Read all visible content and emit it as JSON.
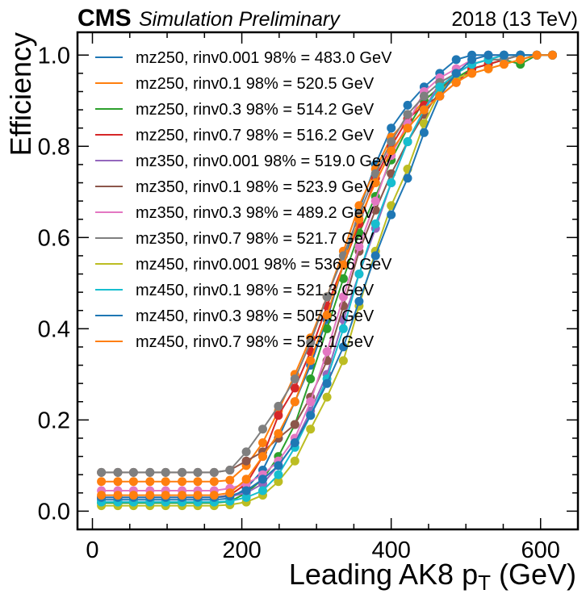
{
  "header": {
    "experiment": "CMS",
    "status": "Simulation Preliminary",
    "energy": "2018 (13 TeV)"
  },
  "chart_data": {
    "type": "line",
    "xlabel_main": "Leading AK8 p",
    "xlabel_sub": "T",
    "xlabel_unit": " (GeV)",
    "ylabel": "Efficiency",
    "xlim": [
      -20,
      650
    ],
    "ylim": [
      -0.04,
      1.05
    ],
    "x_ticks": [
      "0",
      "200",
      "400",
      "600"
    ],
    "y_ticks": [
      "0.0",
      "0.2",
      "0.4",
      "0.6",
      "0.8",
      "1.0"
    ],
    "x": [
      12,
      34,
      55,
      77,
      98,
      120,
      141,
      163,
      184,
      206,
      228,
      249,
      271,
      292,
      314,
      336,
      357,
      379,
      400,
      422,
      444,
      465,
      487,
      508,
      530,
      551,
      573,
      595,
      616
    ],
    "series": [
      {
        "name": "mz250, rinv0.001 98% = 483.0 GeV",
        "color": "#1f77b4",
        "values": [
          0.025,
          0.025,
          0.025,
          0.025,
          0.025,
          0.025,
          0.025,
          0.025,
          0.028,
          0.05,
          0.09,
          0.16,
          0.24,
          0.32,
          0.42,
          0.54,
          0.66,
          0.76,
          0.84,
          0.89,
          0.93,
          0.96,
          0.99,
          1.0,
          1.0,
          1.0,
          1.0,
          1.0,
          1.0
        ]
      },
      {
        "name": "mz250, rinv0.1 98% = 520.5 GeV",
        "color": "#ff7f0e",
        "values": [
          0.065,
          0.065,
          0.065,
          0.065,
          0.065,
          0.065,
          0.065,
          0.065,
          0.068,
          0.1,
          0.15,
          0.22,
          0.3,
          0.38,
          0.47,
          0.57,
          0.67,
          0.75,
          0.82,
          0.86,
          0.9,
          0.93,
          0.95,
          0.97,
          0.98,
          0.99,
          1.0,
          1.0,
          1.0
        ]
      },
      {
        "name": "mz250, rinv0.3 98% = 514.2 GeV",
        "color": "#2ca02c",
        "values": [
          0.018,
          0.018,
          0.018,
          0.018,
          0.018,
          0.018,
          0.018,
          0.018,
          0.021,
          0.04,
          0.07,
          0.12,
          0.19,
          0.29,
          0.4,
          0.51,
          0.61,
          0.69,
          0.77,
          0.84,
          0.9,
          0.93,
          0.95,
          0.97,
          0.98,
          0.99,
          0.98,
          1.0,
          1.0
        ]
      },
      {
        "name": "mz250, rinv0.7 98% = 516.2 GeV",
        "color": "#d62728",
        "values": [
          0.03,
          0.03,
          0.03,
          0.03,
          0.03,
          0.03,
          0.03,
          0.03,
          0.035,
          0.06,
          0.12,
          0.21,
          0.27,
          0.35,
          0.45,
          0.54,
          0.63,
          0.73,
          0.8,
          0.86,
          0.89,
          0.91,
          0.94,
          0.97,
          0.98,
          0.99,
          1.0,
          1.0,
          1.0
        ]
      },
      {
        "name": "mz350, rinv0.001 98% = 519.0 GeV",
        "color": "#9467bd",
        "values": [
          0.03,
          0.03,
          0.03,
          0.03,
          0.03,
          0.03,
          0.03,
          0.03,
          0.032,
          0.04,
          0.06,
          0.1,
          0.15,
          0.22,
          0.3,
          0.42,
          0.52,
          0.62,
          0.72,
          0.81,
          0.88,
          0.94,
          0.96,
          0.98,
          0.99,
          1.0,
          1.0,
          1.0,
          1.0
        ]
      },
      {
        "name": "mz350, rinv0.1 98% = 523.9 GeV",
        "color": "#8c564b",
        "values": [
          0.085,
          0.085,
          0.085,
          0.085,
          0.085,
          0.085,
          0.085,
          0.085,
          0.09,
          0.11,
          0.13,
          0.16,
          0.19,
          0.25,
          0.33,
          0.45,
          0.57,
          0.66,
          0.74,
          0.81,
          0.87,
          0.92,
          0.96,
          0.98,
          0.99,
          0.99,
          1.0,
          1.0,
          1.0
        ]
      },
      {
        "name": "mz350, rinv0.3 98% = 489.2 GeV",
        "color": "#e377c2",
        "values": [
          0.045,
          0.045,
          0.045,
          0.045,
          0.045,
          0.045,
          0.045,
          0.045,
          0.05,
          0.06,
          0.08,
          0.11,
          0.16,
          0.24,
          0.35,
          0.47,
          0.58,
          0.68,
          0.78,
          0.85,
          0.92,
          0.95,
          0.97,
          0.99,
          1.0,
          1.0,
          1.0,
          1.0,
          1.0
        ]
      },
      {
        "name": "mz350, rinv0.7 98% = 521.7 GeV",
        "color": "#7f7f7f",
        "values": [
          0.085,
          0.085,
          0.085,
          0.085,
          0.085,
          0.085,
          0.085,
          0.085,
          0.09,
          0.13,
          0.18,
          0.23,
          0.29,
          0.37,
          0.47,
          0.56,
          0.65,
          0.74,
          0.81,
          0.87,
          0.91,
          0.94,
          0.96,
          0.98,
          0.99,
          0.99,
          1.0,
          1.0,
          1.0
        ]
      },
      {
        "name": "mz450, rinv0.001 98% = 536.6 GeV",
        "color": "#bcbd22",
        "values": [
          0.012,
          0.012,
          0.012,
          0.012,
          0.012,
          0.012,
          0.012,
          0.012,
          0.014,
          0.02,
          0.035,
          0.065,
          0.11,
          0.18,
          0.25,
          0.33,
          0.45,
          0.57,
          0.67,
          0.75,
          0.85,
          0.92,
          0.95,
          0.96,
          0.97,
          0.98,
          0.99,
          1.0,
          1.0
        ]
      },
      {
        "name": "mz450, rinv0.1 98% = 521.3 GeV",
        "color": "#17becf",
        "values": [
          0.02,
          0.02,
          0.02,
          0.02,
          0.02,
          0.02,
          0.02,
          0.02,
          0.022,
          0.03,
          0.045,
          0.08,
          0.14,
          0.21,
          0.29,
          0.4,
          0.52,
          0.63,
          0.72,
          0.81,
          0.88,
          0.93,
          0.96,
          0.98,
          0.99,
          1.0,
          1.0,
          1.0,
          1.0
        ]
      },
      {
        "name": "mz450, rinv0.3 98% = 505.3 GeV",
        "color": "#1f77b4",
        "values": [
          0.03,
          0.03,
          0.03,
          0.03,
          0.03,
          0.03,
          0.03,
          0.03,
          0.033,
          0.045,
          0.07,
          0.1,
          0.15,
          0.21,
          0.28,
          0.36,
          0.46,
          0.56,
          0.65,
          0.73,
          0.83,
          0.91,
          0.96,
          0.99,
          1.0,
          1.0,
          1.0,
          1.0,
          1.0
        ]
      },
      {
        "name": "mz450, rinv0.7 98% = 523.1 GeV",
        "color": "#ff7f0e",
        "values": [
          0.035,
          0.035,
          0.035,
          0.035,
          0.035,
          0.035,
          0.035,
          0.035,
          0.04,
          0.07,
          0.12,
          0.17,
          0.24,
          0.33,
          0.43,
          0.54,
          0.64,
          0.72,
          0.79,
          0.84,
          0.88,
          0.91,
          0.94,
          0.96,
          0.97,
          0.98,
          0.99,
          1.0,
          1.0
        ]
      }
    ]
  }
}
